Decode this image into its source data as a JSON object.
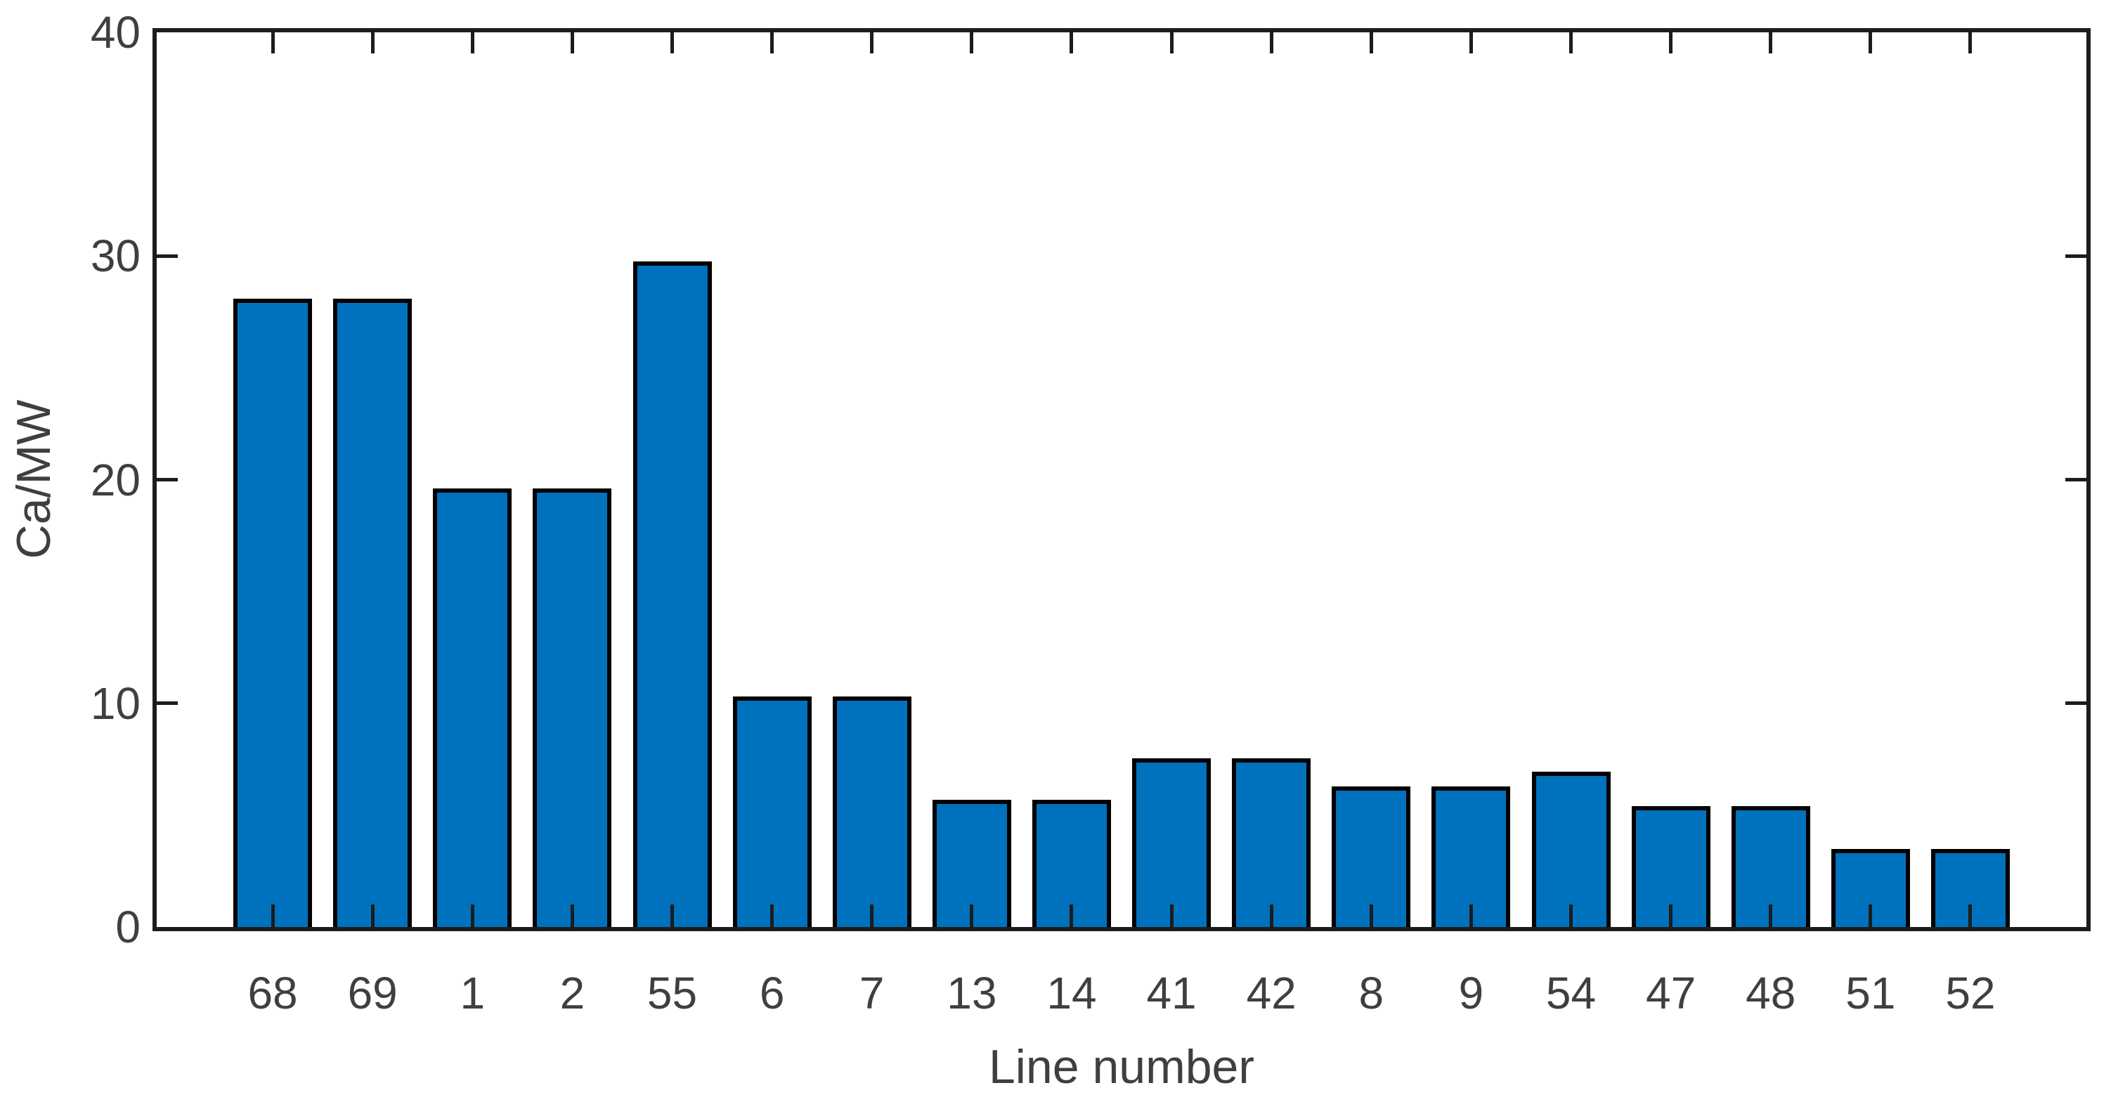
{
  "chart_data": {
    "type": "bar",
    "title": "",
    "xlabel": "Line number",
    "ylabel": "Ca/MW",
    "categories": [
      "68",
      "69",
      "1",
      "2",
      "55",
      "6",
      "7",
      "13",
      "14",
      "41",
      "42",
      "8",
      "9",
      "54",
      "47",
      "48",
      "51",
      "52"
    ],
    "values": [
      28.1,
      28.1,
      19.6,
      19.6,
      29.75,
      10.3,
      10.3,
      5.7,
      5.7,
      7.55,
      7.55,
      6.3,
      6.3,
      6.95,
      5.4,
      5.4,
      3.5,
      3.5
    ],
    "ylim": [
      0,
      40
    ],
    "yticks": [
      0,
      10,
      20,
      30,
      40
    ],
    "ytick_labels": [
      "0",
      "10",
      "20",
      "30",
      "40"
    ],
    "grid": "off",
    "legend": "none",
    "box": "on",
    "tick_direction": "in",
    "bar_color": "#0072BD",
    "bar_edge_color": "#000000",
    "axis_color": "#1c1c1c",
    "text_color": "#3f3f3f",
    "background_color": "#ffffff"
  }
}
